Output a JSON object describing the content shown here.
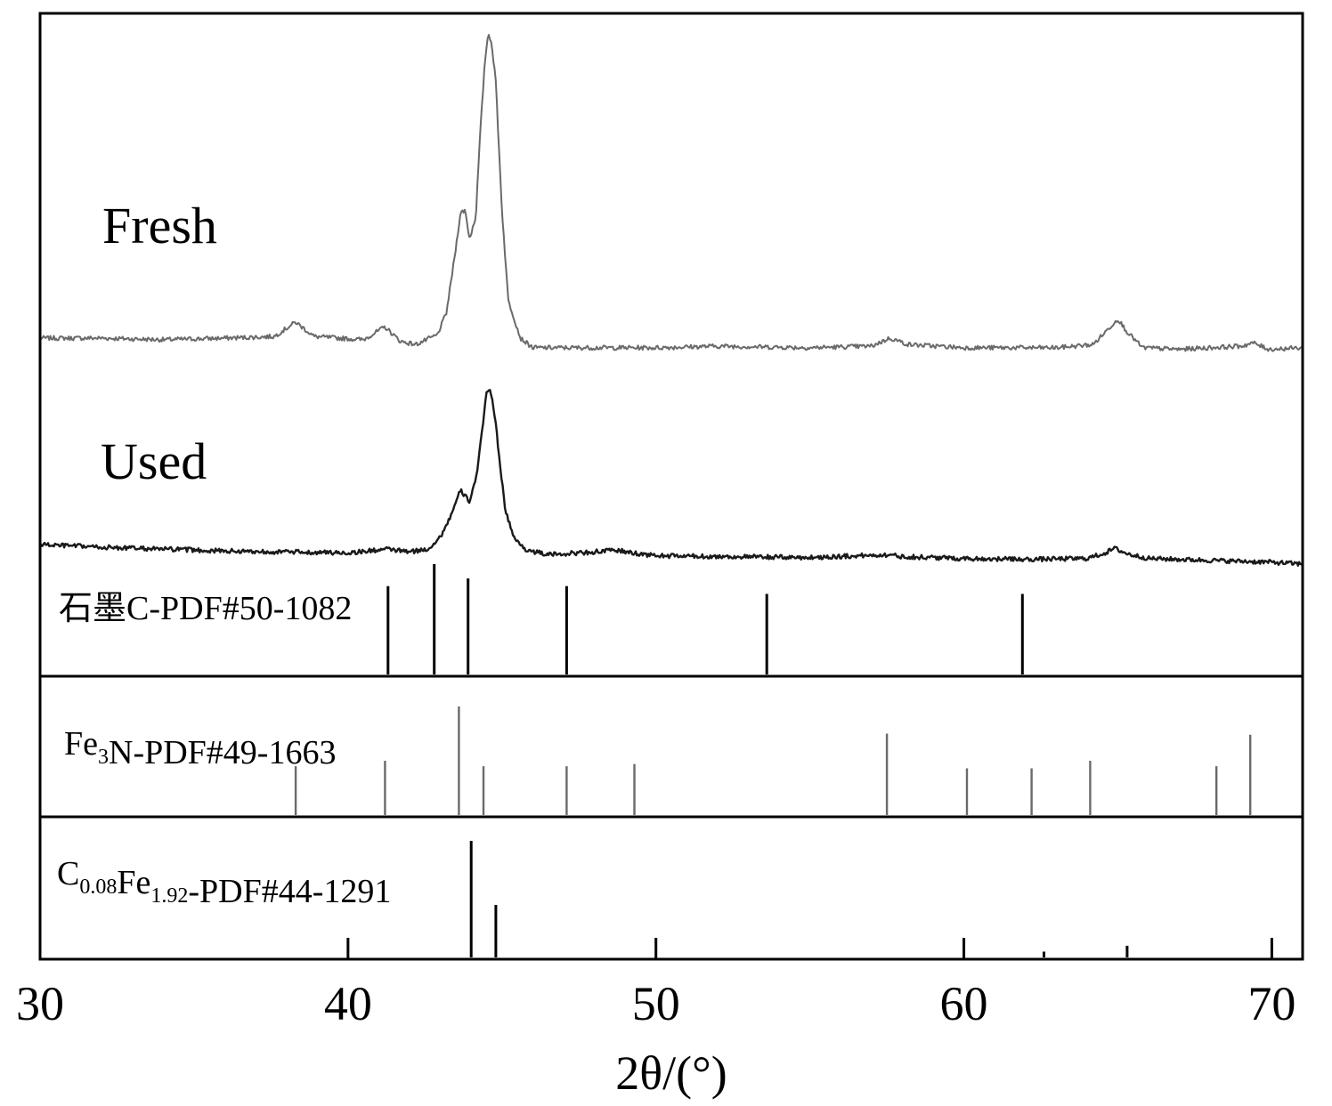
{
  "chart_data": {
    "type": "line",
    "title": "",
    "xlabel": "2θ/(°)",
    "ylabel": "",
    "xlim": [
      30,
      71
    ],
    "xticks": [
      30,
      40,
      50,
      60,
      70
    ],
    "xtick_labels": [
      "30",
      "40",
      "50",
      "60",
      "70"
    ],
    "y_units": "relative intensity (a.u., not labeled)",
    "series": [
      {
        "name": "Fresh",
        "color": "#6a6a6a",
        "noise": 0.007,
        "points": [
          [
            30.0,
            0.05
          ],
          [
            32.0,
            0.05
          ],
          [
            34.0,
            0.045
          ],
          [
            36.0,
            0.05
          ],
          [
            37.6,
            0.055
          ],
          [
            38.3,
            0.1
          ],
          [
            38.9,
            0.055
          ],
          [
            40.5,
            0.045
          ],
          [
            41.2,
            0.085
          ],
          [
            41.7,
            0.04
          ],
          [
            42.2,
            0.03
          ],
          [
            42.9,
            0.06
          ],
          [
            43.2,
            0.13
          ],
          [
            43.5,
            0.33
          ],
          [
            43.65,
            0.44
          ],
          [
            43.8,
            0.45
          ],
          [
            43.95,
            0.36
          ],
          [
            44.15,
            0.43
          ],
          [
            44.3,
            0.7
          ],
          [
            44.45,
            0.92
          ],
          [
            44.55,
            1.0
          ],
          [
            44.65,
            0.98
          ],
          [
            44.8,
            0.85
          ],
          [
            45.0,
            0.45
          ],
          [
            45.2,
            0.17
          ],
          [
            45.6,
            0.05
          ],
          [
            46.0,
            0.02
          ],
          [
            48.0,
            0.02
          ],
          [
            50.0,
            0.02
          ],
          [
            52.0,
            0.025
          ],
          [
            55.0,
            0.02
          ],
          [
            57.0,
            0.025
          ],
          [
            57.6,
            0.05
          ],
          [
            58.2,
            0.03
          ],
          [
            60.0,
            0.02
          ],
          [
            63.0,
            0.02
          ],
          [
            64.2,
            0.03
          ],
          [
            64.7,
            0.08
          ],
          [
            65.0,
            0.11
          ],
          [
            65.3,
            0.07
          ],
          [
            65.8,
            0.02
          ],
          [
            67.0,
            0.015
          ],
          [
            69.0,
            0.025
          ],
          [
            69.4,
            0.035
          ],
          [
            69.9,
            0.015
          ],
          [
            71.0,
            0.02
          ]
        ]
      },
      {
        "name": "Used",
        "color": "#1a1a1a",
        "noise": 0.012,
        "points": [
          [
            30.0,
            0.11
          ],
          [
            32.0,
            0.095
          ],
          [
            34.0,
            0.085
          ],
          [
            36.0,
            0.075
          ],
          [
            38.0,
            0.07
          ],
          [
            40.0,
            0.065
          ],
          [
            41.3,
            0.085
          ],
          [
            42.0,
            0.07
          ],
          [
            42.6,
            0.085
          ],
          [
            43.0,
            0.15
          ],
          [
            43.3,
            0.25
          ],
          [
            43.5,
            0.33
          ],
          [
            43.65,
            0.4
          ],
          [
            43.8,
            0.37
          ],
          [
            43.95,
            0.34
          ],
          [
            44.2,
            0.5
          ],
          [
            44.4,
            0.78
          ],
          [
            44.5,
            0.93
          ],
          [
            44.6,
            0.95
          ],
          [
            44.75,
            0.82
          ],
          [
            44.9,
            0.6
          ],
          [
            45.1,
            0.3
          ],
          [
            45.4,
            0.14
          ],
          [
            45.8,
            0.08
          ],
          [
            46.5,
            0.055
          ],
          [
            48.0,
            0.07
          ],
          [
            48.7,
            0.08
          ],
          [
            49.2,
            0.065
          ],
          [
            50.0,
            0.05
          ],
          [
            52.0,
            0.045
          ],
          [
            55.0,
            0.04
          ],
          [
            57.5,
            0.055
          ],
          [
            58.0,
            0.045
          ],
          [
            60.0,
            0.035
          ],
          [
            62.0,
            0.03
          ],
          [
            64.0,
            0.035
          ],
          [
            64.6,
            0.065
          ],
          [
            64.9,
            0.09
          ],
          [
            65.3,
            0.06
          ],
          [
            66.0,
            0.035
          ],
          [
            68.0,
            0.025
          ],
          [
            70.0,
            0.015
          ],
          [
            71.0,
            0.005
          ]
        ]
      }
    ],
    "references": [
      {
        "label": "石墨C-PDF#50-1082",
        "label_parts": [
          {
            "t": "石墨C-PDF#50-1082"
          }
        ],
        "color": "#000000",
        "peaks": [
          {
            "x": 41.3,
            "h": 0.8
          },
          {
            "x": 42.8,
            "h": 1.0
          },
          {
            "x": 43.9,
            "h": 0.87
          },
          {
            "x": 47.1,
            "h": 0.8
          },
          {
            "x": 53.6,
            "h": 0.73
          },
          {
            "x": 61.9,
            "h": 0.73
          }
        ]
      },
      {
        "label": "Fe3N-PDF#49-1663",
        "label_parts": [
          {
            "t": "Fe"
          },
          {
            "t": "3",
            "sub": true
          },
          {
            "t": "N-PDF#49-1663"
          }
        ],
        "color": "#6a6a6a",
        "peaks": [
          {
            "x": 38.3,
            "h": 0.45
          },
          {
            "x": 41.2,
            "h": 0.5
          },
          {
            "x": 43.6,
            "h": 1.0
          },
          {
            "x": 44.4,
            "h": 0.45
          },
          {
            "x": 47.1,
            "h": 0.45
          },
          {
            "x": 49.3,
            "h": 0.47
          },
          {
            "x": 57.5,
            "h": 0.75
          },
          {
            "x": 60.1,
            "h": 0.43
          },
          {
            "x": 62.2,
            "h": 0.43
          },
          {
            "x": 64.1,
            "h": 0.5
          },
          {
            "x": 68.2,
            "h": 0.45
          },
          {
            "x": 69.3,
            "h": 0.74
          }
        ]
      },
      {
        "label": "C0.08Fe1.92-PDF#44-1291",
        "label_parts": [
          {
            "t": "C"
          },
          {
            "t": "0.08",
            "sub": true
          },
          {
            "t": "Fe"
          },
          {
            "t": "1.92",
            "sub": true
          },
          {
            "t": "-PDF#44-1291"
          }
        ],
        "color": "#000000",
        "peaks": [
          {
            "x": 44.0,
            "h": 1.0
          },
          {
            "x": 44.8,
            "h": 0.45
          },
          {
            "x": 62.6,
            "h": 0.05
          },
          {
            "x": 65.3,
            "h": 0.1
          }
        ]
      }
    ],
    "grid": false,
    "legend": "none; traces labeled inline"
  }
}
